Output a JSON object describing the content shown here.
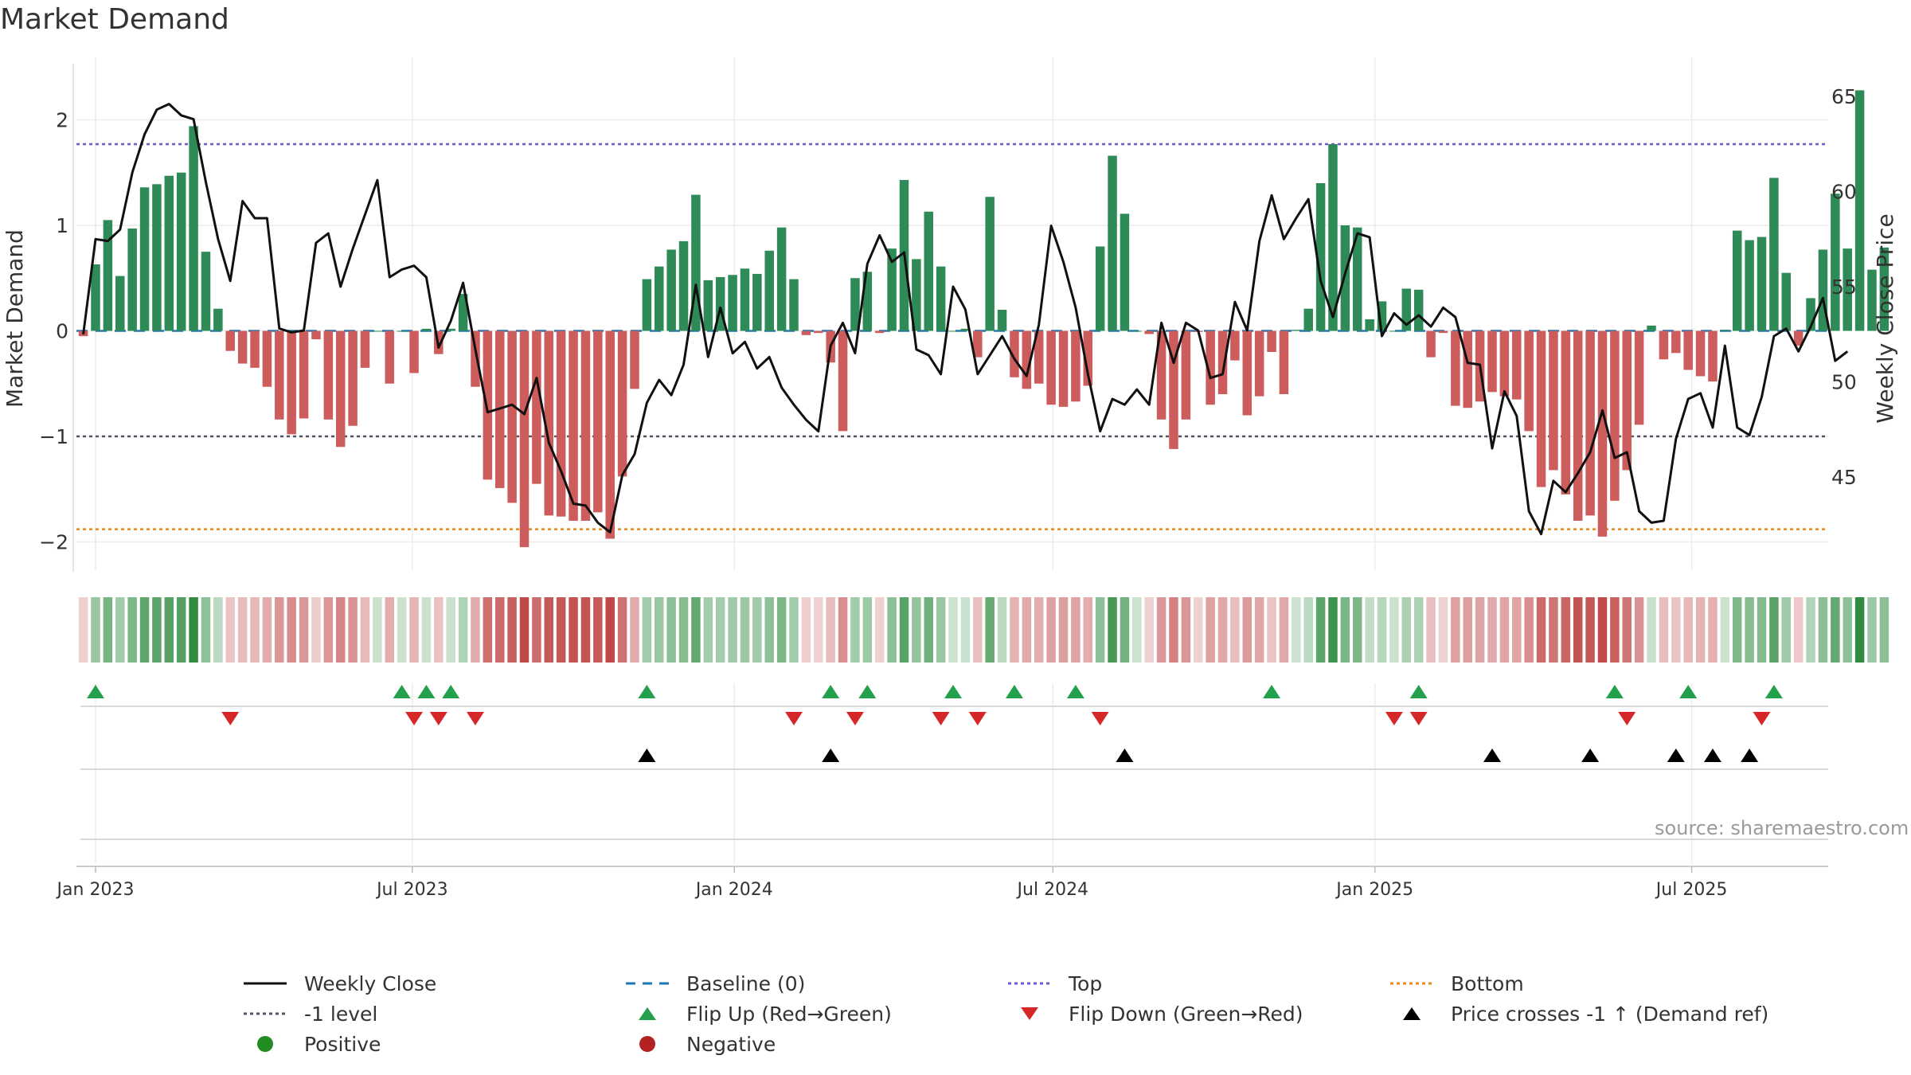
{
  "title": "Market Demand",
  "source": "source: sharemaestro.com",
  "colors": {
    "positive": "#2e8b57",
    "negative": "#cd5c5c",
    "price": "#111111",
    "baseline": "#1f77b4",
    "top": "#6a5acd",
    "minus1": "#555566",
    "bottom": "#e08a1e",
    "flip_up": "#22a04b",
    "flip_down": "#d62728",
    "cross": "#000000"
  },
  "legend": [
    {
      "key": "weekly_close",
      "label": "Weekly Close",
      "symbol": "line-solid",
      "color": "#111111"
    },
    {
      "key": "baseline",
      "label": "Baseline (0)",
      "symbol": "line-dash",
      "color": "#1f77b4"
    },
    {
      "key": "top",
      "label": "Top",
      "symbol": "line-dot",
      "color": "#6a5acd"
    },
    {
      "key": "bottom",
      "label": "Bottom",
      "symbol": "line-dot",
      "color": "#e08a1e"
    },
    {
      "key": "minus1",
      "label": "-1 level",
      "symbol": "line-dot",
      "color": "#555566"
    },
    {
      "key": "flip_up",
      "label": "Flip Up (Red→Green)",
      "symbol": "tri-up",
      "color": "#22a04b"
    },
    {
      "key": "flip_down",
      "label": "Flip Down (Green→Red)",
      "symbol": "tri-down",
      "color": "#d62728"
    },
    {
      "key": "cross",
      "label": "Price crosses -1 ↑ (Demand ref)",
      "symbol": "tri-up",
      "color": "#000000"
    },
    {
      "key": "positive",
      "label": "Positive",
      "symbol": "dot",
      "color": "#228b22"
    },
    {
      "key": "negative",
      "label": "Negative",
      "symbol": "dot",
      "color": "#b22222"
    }
  ],
  "chart_data": {
    "type": "bar",
    "title": "Market Demand",
    "ylabel": "Market Demand",
    "y2label": "Weekly Close Price",
    "ylim": [
      -2.3,
      2.5
    ],
    "y2lim": [
      40.6,
      66.9
    ],
    "yticks": [
      -2,
      -1,
      0,
      1,
      2
    ],
    "ytick_labels": [
      "−2",
      "−1",
      "0",
      "1",
      "2"
    ],
    "y2ticks": [
      45,
      50,
      55,
      60,
      65
    ],
    "x_dates": [
      "2023-01-01",
      "2023-07-01",
      "2024-01-01",
      "2024-07-01",
      "2025-01-01",
      "2025-07-01"
    ],
    "xtick_labels": [
      "Jan 2023",
      "Jul 2023",
      "Jan 2024",
      "Jul 2024",
      "Jan 2025",
      "Jul 2025"
    ],
    "start_date": "2022-12-25",
    "period_days": 7,
    "levels": {
      "baseline": 0,
      "top": 1.77,
      "minus1": -1,
      "bottom": -1.88
    },
    "demand": [
      -0.05,
      0.63,
      1.05,
      0.52,
      0.97,
      1.36,
      1.39,
      1.47,
      1.5,
      1.94,
      0.75,
      0.21,
      -0.19,
      -0.31,
      -0.35,
      -0.53,
      -0.84,
      -0.98,
      -0.83,
      -0.08,
      -0.84,
      -1.1,
      -0.9,
      -0.35,
      0,
      -0.5,
      0,
      -0.4,
      0.02,
      -0.22,
      0.02,
      0.35,
      -0.53,
      -1.41,
      -1.49,
      -1.63,
      -2.05,
      -1.45,
      -1.75,
      -1.76,
      -1.8,
      -1.8,
      -1.72,
      -1.97,
      -1.38,
      -0.55,
      0.49,
      0.61,
      0.77,
      0.85,
      1.29,
      0.48,
      0.51,
      0.53,
      0.59,
      0.54,
      0.76,
      0.98,
      0.49,
      -0.04,
      -0.02,
      -0.3,
      -0.95,
      0.5,
      0.56,
      -0.02,
      0.78,
      1.43,
      0.68,
      1.13,
      0.61,
      0,
      0.02,
      -0.25,
      1.27,
      0.2,
      -0.44,
      -0.55,
      -0.5,
      -0.7,
      -0.72,
      -0.67,
      -0.52,
      0.8,
      1.66,
      1.11,
      0,
      -0.03,
      -0.84,
      -1.12,
      -0.84,
      -0.01,
      -0.7,
      -0.6,
      -0.28,
      -0.8,
      -0.62,
      -0.2,
      -0.6,
      0.01,
      0.21,
      1.4,
      1.77,
      1.0,
      0.98,
      0.11,
      0.28,
      0,
      0.4,
      0.39,
      -0.25,
      -0.02,
      -0.71,
      -0.73,
      -0.67,
      -0.58,
      -0.62,
      -0.65,
      -0.95,
      -1.48,
      -1.32,
      -1.55,
      -1.8,
      -1.75,
      -1.95,
      -1.61,
      -1.32,
      -0.89,
      0.05,
      -0.27,
      -0.21,
      -0.37,
      -0.43,
      -0.48,
      0.01,
      0.95,
      0.86,
      0.89,
      1.45,
      0.55,
      -0.14,
      0.31,
      0.77,
      1.3,
      0.78,
      2.28,
      0.58,
      0.79
    ],
    "price": [
      52.5,
      57.5,
      57.4,
      58.0,
      61.0,
      63.0,
      64.3,
      64.6,
      64.0,
      63.8,
      60.5,
      57.5,
      55.3,
      59.5,
      58.6,
      58.6,
      52.8,
      52.6,
      52.7,
      57.3,
      57.8,
      55.0,
      57.0,
      58.8,
      60.6,
      55.5,
      55.9,
      56.1,
      55.5,
      51.8,
      53.2,
      55.2,
      51.7,
      48.4,
      48.6,
      48.8,
      48.3,
      50.2,
      46.8,
      45.3,
      43.6,
      43.5,
      42.6,
      42.1,
      45.1,
      46.2,
      48.9,
      50.1,
      49.3,
      50.9,
      55.1,
      51.3,
      53.9,
      51.5,
      52.1,
      50.7,
      51.3,
      49.7,
      48.8,
      48.0,
      47.4,
      51.9,
      53.1,
      51.5,
      56.2,
      57.7,
      56.3,
      56.8,
      51.7,
      51.4,
      50.4,
      55.0,
      53.8,
      50.4,
      51.4,
      52.4,
      51.2,
      50.3,
      53.0,
      58.2,
      56.3,
      53.9,
      50.4,
      47.4,
      49.1,
      48.8,
      49.6,
      48.8,
      53.1,
      51.0,
      53.1,
      52.7,
      50.2,
      50.4,
      54.2,
      52.7,
      57.4,
      59.8,
      57.5,
      58.6,
      59.6,
      55.3,
      53.4,
      55.7,
      57.8,
      57.6,
      52.4,
      53.6,
      53.0,
      53.5,
      52.9,
      53.9,
      53.4,
      51.0,
      50.9,
      46.5,
      49.5,
      48.2,
      43.2,
      42.0,
      44.8,
      44.2,
      45.2,
      46.3,
      48.5,
      46.0,
      46.3,
      43.2,
      42.6,
      42.7,
      47.0,
      49.1,
      49.4,
      47.6,
      51.9,
      47.6,
      47.2,
      49.2,
      52.4,
      52.8,
      51.6,
      52.9,
      54.4,
      51.1,
      51.6
    ],
    "flip_up_weeks": [
      1,
      26,
      28,
      30,
      46,
      61,
      64,
      71,
      76,
      81,
      97,
      109,
      125,
      131,
      138
    ],
    "flip_down_weeks": [
      12,
      27,
      29,
      32,
      58,
      63,
      70,
      73,
      83,
      107,
      109,
      126,
      137
    ],
    "price_cross_weeks": [
      46,
      61,
      85,
      115,
      123,
      130,
      133,
      136
    ]
  }
}
